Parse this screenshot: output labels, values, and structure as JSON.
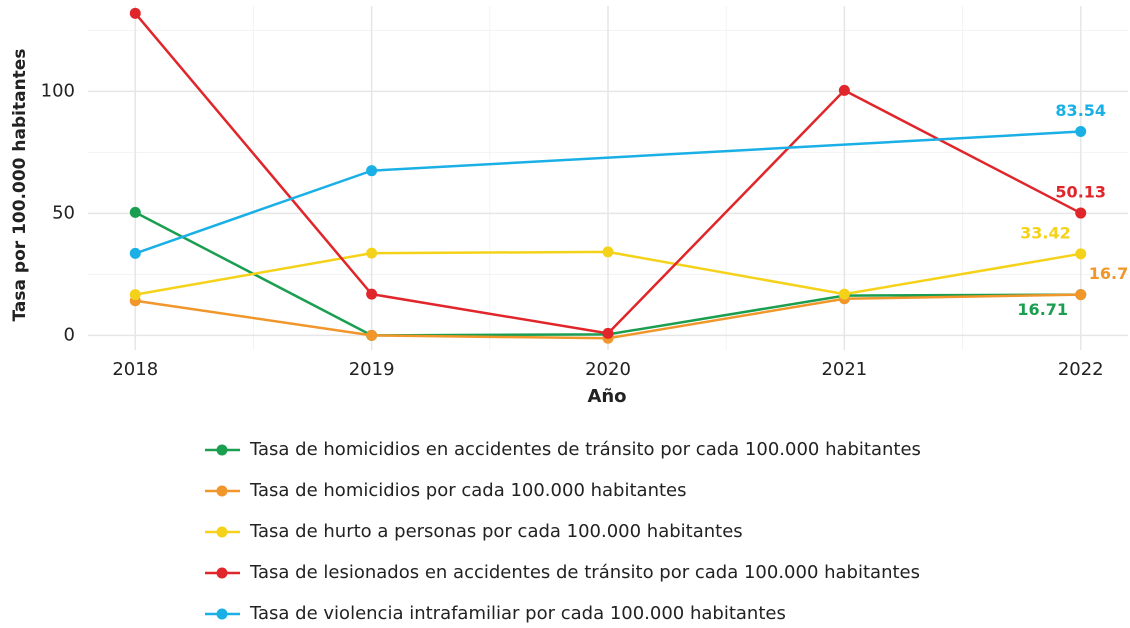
{
  "chart_data": {
    "type": "line",
    "x_label": "Año",
    "y_label": "Tasa por 100.000 habitantes",
    "x": [
      2018,
      2019,
      2020,
      2021,
      2022
    ],
    "xlim": [
      2017.8,
      2022.2
    ],
    "xticks": [
      2018,
      2019,
      2020,
      2021,
      2022
    ],
    "minor_xticks": [
      2018.5,
      2019.5,
      2020.5,
      2021.5
    ],
    "ylim": [
      -6,
      135
    ],
    "yticks": [
      0,
      50,
      100
    ],
    "minor_yticks": [
      25,
      75,
      125
    ],
    "grid": true,
    "legend": "bottom",
    "series": [
      {
        "name": "Tasa de homicidios en accidentes de tránsito por cada 100.000 habitantes",
        "color": "#1a9e50",
        "values": [
          50.4,
          0,
          0.4,
          16.3,
          16.71
        ]
      },
      {
        "name": "Tasa de homicidios por cada 100.000 habitantes",
        "color": "#f0962a",
        "values": [
          14.2,
          0,
          -1.2,
          15,
          16.71
        ]
      },
      {
        "name": "Tasa de hurto a personas por cada 100.000 habitantes",
        "color": "#f5d21a",
        "values": [
          16.7,
          33.7,
          34.2,
          16.9,
          33.42
        ]
      },
      {
        "name": "Tasa de lesionados en accidentes de tránsito por cada 100.000 habitantes",
        "color": "#e0262b",
        "values": [
          132,
          16.9,
          0.8,
          100.4,
          50.13
        ]
      },
      {
        "name": "Tasa de violencia intrafamiliar por cada 100.000 habitantes",
        "color": "#1ab0e6",
        "x": [
          2018,
          2019,
          2022
        ],
        "values": [
          33.6,
          67.5,
          83.54
        ]
      }
    ]
  }
}
